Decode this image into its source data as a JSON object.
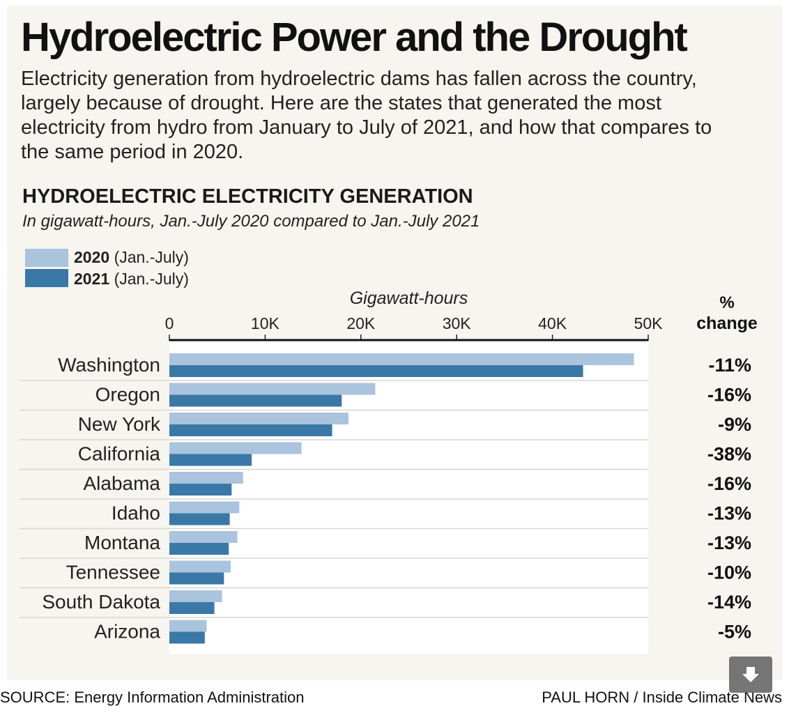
{
  "header": {
    "title": "Hydroelectric Power and the Drought",
    "intro": "Electricity generation from hydroelectric dams has fallen across the country, largely because of drought. Here are the states that generated the most electricity from hydro from January to July of 2021, and how that compares to the same period in 2020."
  },
  "chart_heading": "HYDROELECTRIC ELECTRICITY GENERATION",
  "chart_subheading": "In gigawatt-hours, Jan.-July 2020 compared to Jan.-July 2021",
  "legend": {
    "items": [
      {
        "year": "2020",
        "period": "(Jan.-July)",
        "color": "#a9c4dc"
      },
      {
        "year": "2021",
        "period": "(Jan.-July)",
        "color": "#3a78a8"
      }
    ]
  },
  "chart_data": {
    "type": "bar",
    "orientation": "horizontal",
    "xlabel": "Gigawatt-hours",
    "xlim": [
      0,
      50000
    ],
    "ticks": [
      {
        "value": 0,
        "label": "0"
      },
      {
        "value": 10000,
        "label": "10K"
      },
      {
        "value": 20000,
        "label": "20K"
      },
      {
        "value": 30000,
        "label": "30K"
      },
      {
        "value": 40000,
        "label": "40K"
      },
      {
        "value": 50000,
        "label": "50K"
      }
    ],
    "change_header": [
      "%",
      "change"
    ],
    "categories": [
      "Washington",
      "Oregon",
      "New York",
      "California",
      "Alabama",
      "Idaho",
      "Montana",
      "Tennessee",
      "South Dakota",
      "Arizona"
    ],
    "series": [
      {
        "name": "2020",
        "values": [
          48500,
          21500,
          18700,
          13800,
          7700,
          7300,
          7100,
          6400,
          5500,
          3900
        ]
      },
      {
        "name": "2021",
        "values": [
          43200,
          18000,
          17000,
          8600,
          6500,
          6300,
          6200,
          5700,
          4700,
          3700
        ]
      }
    ],
    "change": [
      "-11%",
      "-16%",
      "-9%",
      "-38%",
      "-16%",
      "-13%",
      "-13%",
      "-10%",
      "-14%",
      "-5%"
    ],
    "grid": false
  },
  "footer": {
    "source": "SOURCE: Energy Information Administration",
    "credit": "PAUL HORN / Inside Climate News"
  },
  "download_button": {
    "icon": "download-arrow-icon"
  }
}
